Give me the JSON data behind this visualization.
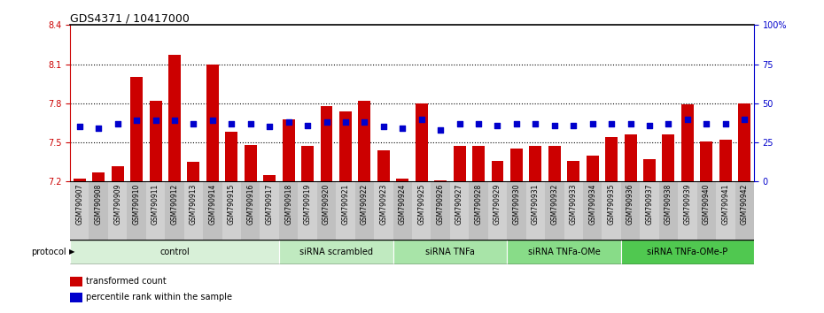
{
  "title": "GDS4371 / 10417000",
  "samples": [
    "GSM790907",
    "GSM790908",
    "GSM790909",
    "GSM790910",
    "GSM790911",
    "GSM790912",
    "GSM790913",
    "GSM790914",
    "GSM790915",
    "GSM790916",
    "GSM790917",
    "GSM790918",
    "GSM790919",
    "GSM790920",
    "GSM790921",
    "GSM790922",
    "GSM790923",
    "GSM790924",
    "GSM790925",
    "GSM790926",
    "GSM790927",
    "GSM790928",
    "GSM790929",
    "GSM790930",
    "GSM790931",
    "GSM790932",
    "GSM790933",
    "GSM790934",
    "GSM790935",
    "GSM790936",
    "GSM790937",
    "GSM790938",
    "GSM790939",
    "GSM790940",
    "GSM790941",
    "GSM790942"
  ],
  "bar_values": [
    7.22,
    7.27,
    7.32,
    8.0,
    7.82,
    8.17,
    7.35,
    8.1,
    7.58,
    7.48,
    7.25,
    7.68,
    7.47,
    7.78,
    7.74,
    7.82,
    7.44,
    7.22,
    7.8,
    7.21,
    7.47,
    7.47,
    7.36,
    7.45,
    7.47,
    7.47,
    7.36,
    7.4,
    7.54,
    7.56,
    7.37,
    7.56,
    7.79,
    7.51,
    7.52,
    7.8
  ],
  "percentile_values": [
    35,
    34,
    37,
    39,
    39,
    39,
    37,
    39,
    37,
    37,
    35,
    38,
    36,
    38,
    38,
    38,
    35,
    34,
    40,
    33,
    37,
    37,
    36,
    37,
    37,
    36,
    36,
    37,
    37,
    37,
    36,
    37,
    40,
    37,
    37,
    40
  ],
  "groups": [
    {
      "label": "control",
      "start": 0,
      "end": 11,
      "color": "#d8f0d8"
    },
    {
      "label": "siRNA scrambled",
      "start": 11,
      "end": 17,
      "color": "#c0eac0"
    },
    {
      "label": "siRNA TNFa",
      "start": 17,
      "end": 23,
      "color": "#a8e4a8"
    },
    {
      "label": "siRNA TNFa-OMe",
      "start": 23,
      "end": 29,
      "color": "#88dc88"
    },
    {
      "label": "siRNA TNFa-OMe-P",
      "start": 29,
      "end": 36,
      "color": "#50c850"
    }
  ],
  "y_min": 7.2,
  "y_max": 8.4,
  "y_ticks_left": [
    7.2,
    7.5,
    7.8,
    8.1,
    8.4
  ],
  "y_ticks_right": [
    0,
    25,
    50,
    75,
    100
  ],
  "bar_color": "#cc0000",
  "dot_color": "#0000cc",
  "background_color": "#ffffff",
  "percentile_scale_max": 100
}
